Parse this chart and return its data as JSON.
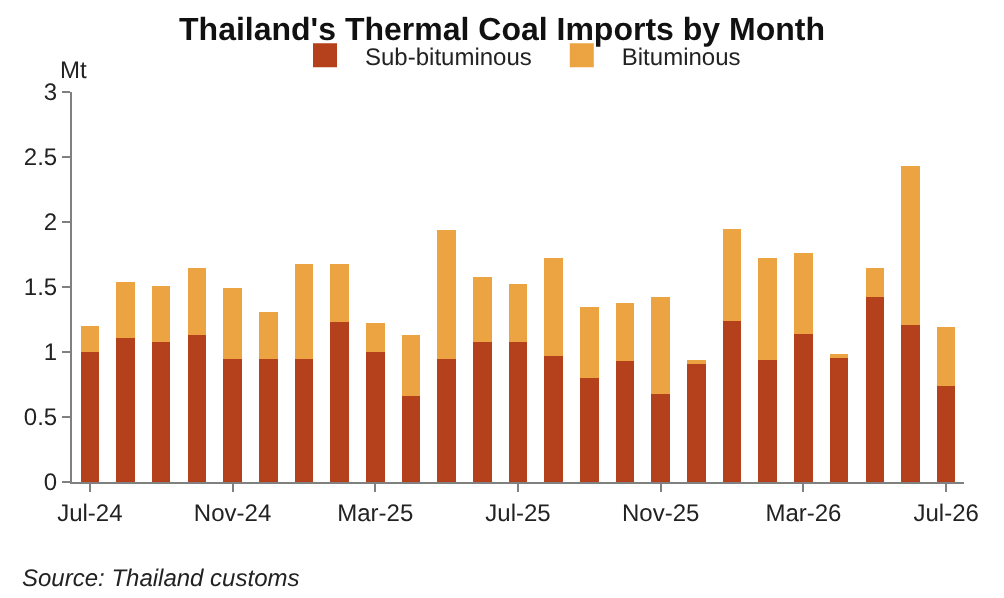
{
  "chart_data": {
    "type": "bar",
    "title": "Thailand's Thermal Coal Imports by Month",
    "ylabel": "Mt",
    "categories": [
      "Jul-24",
      null,
      null,
      null,
      "Nov-24",
      null,
      null,
      null,
      "Mar-25",
      null,
      null,
      null,
      "Jul-25",
      null,
      null,
      null,
      "Nov-25",
      null,
      null,
      null,
      "Mar-26",
      null,
      null,
      null,
      "Jul-26"
    ],
    "series": [
      {
        "name": "Sub-bituminous",
        "color": "#b5401c",
        "values": [
          1.0,
          1.11,
          1.08,
          1.13,
          0.95,
          0.95,
          0.95,
          1.23,
          1.0,
          0.66,
          0.95,
          1.08,
          1.08,
          0.97,
          0.8,
          0.93,
          0.68,
          0.91,
          1.24,
          0.94,
          1.14,
          0.96,
          1.42,
          1.21,
          0.74
        ]
      },
      {
        "name": "Bituminous",
        "color": "#eca443",
        "values": [
          0.2,
          0.43,
          0.43,
          0.52,
          0.54,
          0.36,
          0.73,
          0.45,
          0.22,
          0.47,
          0.99,
          0.5,
          0.44,
          0.75,
          0.55,
          0.45,
          0.74,
          0.02,
          0.71,
          0.78,
          0.62,
          0.01,
          0.23,
          1.22,
          0.45
        ]
      }
    ],
    "stacked": true,
    "ylim": [
      0,
      3
    ],
    "yticks": [
      0,
      0.5,
      1,
      1.5,
      2,
      2.5,
      3
    ],
    "grid": false,
    "legend": "top",
    "annotations": [
      "Source: Thailand customs"
    ]
  }
}
